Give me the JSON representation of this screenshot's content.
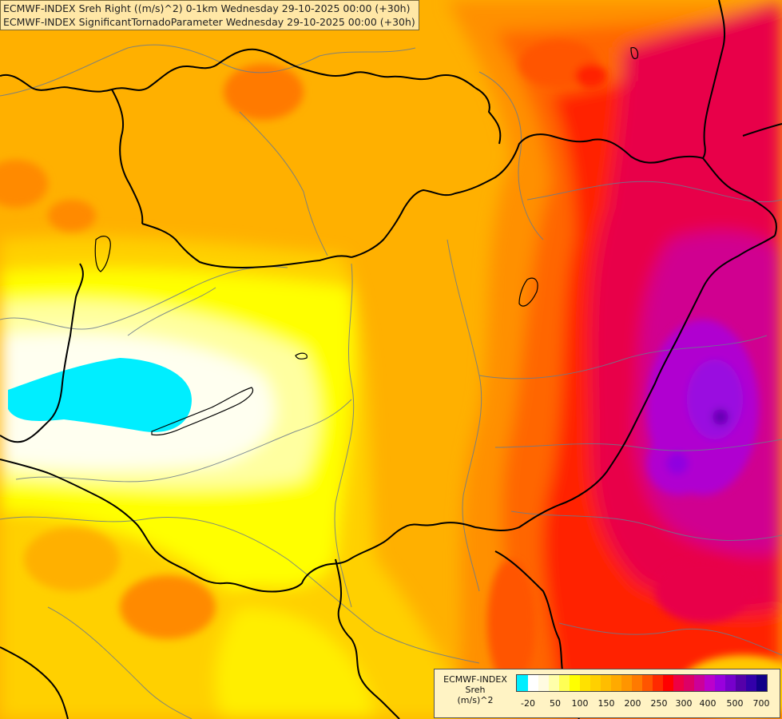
{
  "header": {
    "line1": "ECMWF-INDEX Sreh Right ((m/s)^2) 0-1km Wednesday 29-10-2025 00:00 (+30h)",
    "line2": "ECMWF-INDEX SignificantTornadoParameter Wednesday 29-10-2025 00:00 (+30h)"
  },
  "legend": {
    "title_line1": "ECMWF-INDEX",
    "title_line2": "Sreh",
    "title_line3": "(m/s)^2",
    "colors": [
      "#00eeff",
      "#ffffff",
      "#fffbe0",
      "#ffffaa",
      "#ffff55",
      "#ffff00",
      "#ffe100",
      "#ffd000",
      "#ffbd00",
      "#ffaa00",
      "#ff9500",
      "#ff7a00",
      "#ff5500",
      "#ff2a00",
      "#ff0000",
      "#ee0044",
      "#dd0066",
      "#cc0099",
      "#bb00cc",
      "#9900dd",
      "#7700cc",
      "#5500aa",
      "#3300aa",
      "#110088"
    ],
    "labels": [
      "-20",
      "50",
      "100",
      "150",
      "200",
      "250",
      "300",
      "400",
      "500",
      "700"
    ]
  },
  "colors": {
    "cyan": "#00eeff",
    "white": "#fffff0",
    "pale_yellow": "#ffffa0",
    "yellow": "#ffff00",
    "gold": "#ffd000",
    "orange_light": "#ffb000",
    "orange": "#ff9000",
    "orange_dark": "#ff6600",
    "red": "#ff2000",
    "crimson": "#e8004a",
    "magenta": "#d00090",
    "violet": "#b000d0",
    "purple": "#8000c0",
    "border": "#000000",
    "river": "#6b7a8c"
  }
}
